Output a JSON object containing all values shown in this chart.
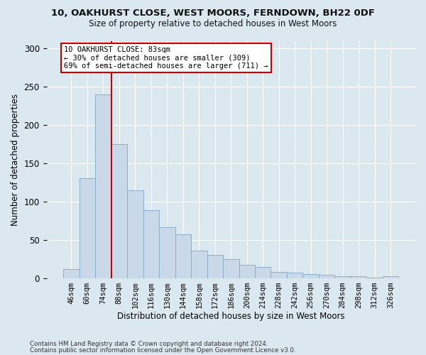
{
  "title1": "10, OAKHURST CLOSE, WEST MOORS, FERNDOWN, BH22 0DF",
  "title2": "Size of property relative to detached houses in West Moors",
  "xlabel": "Distribution of detached houses by size in West Moors",
  "ylabel": "Number of detached properties",
  "categories": [
    "46sqm",
    "60sqm",
    "74sqm",
    "88sqm",
    "102sqm",
    "116sqm",
    "130sqm",
    "144sqm",
    "158sqm",
    "172sqm",
    "186sqm",
    "200sqm",
    "214sqm",
    "228sqm",
    "242sqm",
    "256sqm",
    "270sqm",
    "284sqm",
    "298sqm",
    "312sqm",
    "326sqm"
  ],
  "bar_heights": [
    12,
    130,
    240,
    175,
    115,
    89,
    66,
    57,
    36,
    30,
    25,
    17,
    14,
    8,
    7,
    5,
    4,
    2,
    2,
    1,
    2
  ],
  "bar_color": "#c9d9ea",
  "bar_edge_color": "#8ab0cc",
  "vline_position": 2.5,
  "vline_color": "#cc0000",
  "annotation_line1": "10 OAKHURST CLOSE: 83sqm",
  "annotation_line2": "← 30% of detached houses are smaller (309)",
  "annotation_line3": "69% of semi-detached houses are larger (711) →",
  "ann_box_facecolor": "#ffffff",
  "ann_box_edgecolor": "#cc0000",
  "ylim": [
    0,
    310
  ],
  "yticks": [
    0,
    50,
    100,
    150,
    200,
    250,
    300
  ],
  "bg_color": "#dce8f0",
  "plot_bg_color": "#dce8f0",
  "footer1": "Contains HM Land Registry data © Crown copyright and database right 2024.",
  "footer2": "Contains public sector information licensed under the Open Government Licence v3.0."
}
